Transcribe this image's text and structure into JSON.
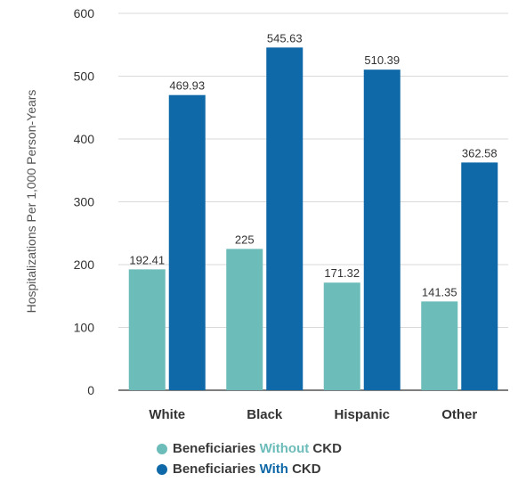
{
  "chart_data": {
    "type": "bar",
    "title": "",
    "xlabel": "",
    "ylabel": "Hospitalizations Per 1,000 Person-Years",
    "ylim": [
      0,
      600
    ],
    "yticks": [
      "0",
      "100",
      "200",
      "300",
      "400",
      "500",
      "600"
    ],
    "grid": true,
    "legend_position": "bottom",
    "categories": [
      "White",
      "Black",
      "Hispanic",
      "Other"
    ],
    "series": [
      {
        "name": "Beneficiaries Without CKD",
        "legend_parts": [
          "Beneficiaries ",
          "Without",
          " CKD"
        ],
        "color": "#6cbcba",
        "values": [
          192.41,
          225,
          171.32,
          141.35
        ],
        "labels": [
          "192.41",
          "225",
          "171.32",
          "141.35"
        ]
      },
      {
        "name": "Beneficiaries With CKD",
        "legend_parts": [
          "Beneficiaries ",
          "With",
          " CKD"
        ],
        "color": "#0f68a7",
        "values": [
          469.93,
          545.63,
          510.39,
          362.58
        ],
        "labels": [
          "469.93",
          "545.63",
          "510.39",
          "362.58"
        ]
      }
    ]
  }
}
